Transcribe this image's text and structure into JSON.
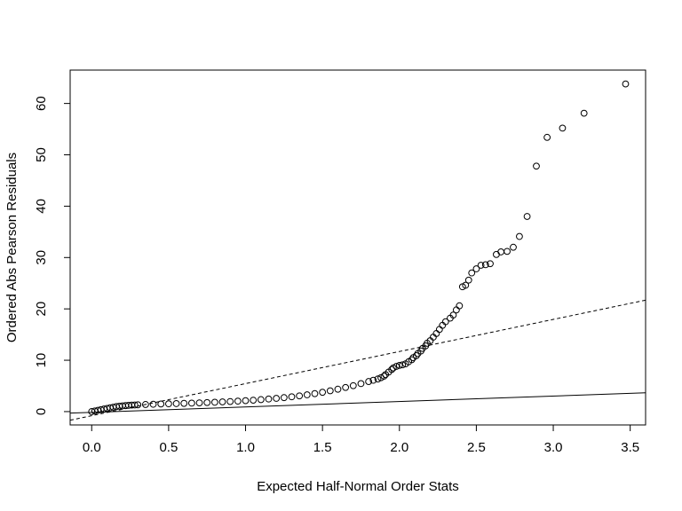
{
  "chart_data": {
    "type": "scatter",
    "title": "",
    "xlabel": "Expected Half-Normal Order Stats",
    "ylabel": "Ordered Abs Pearson Residuals",
    "xlim": [
      -0.14,
      3.6
    ],
    "ylim": [
      -2.6,
      66.5
    ],
    "xticks": [
      "0.0",
      "0.5",
      "1.0",
      "1.5",
      "2.0",
      "2.5",
      "3.0",
      "3.5"
    ],
    "xtick_values": [
      0,
      0.5,
      1.0,
      1.5,
      2.0,
      2.5,
      3.0,
      3.5
    ],
    "yticks": [
      "0",
      "10",
      "20",
      "30",
      "40",
      "50",
      "60"
    ],
    "ytick_values": [
      0,
      10,
      20,
      30,
      40,
      50,
      60
    ],
    "grid": false,
    "legend": "none",
    "marker": "open-circle",
    "lines": [
      {
        "style": "solid",
        "intercept": -0.15,
        "slope": 1.06
      },
      {
        "style": "dashed",
        "intercept": -0.8,
        "slope": 6.25
      }
    ],
    "points": [
      [
        0.0,
        0.0
      ],
      [
        0.02,
        0.12
      ],
      [
        0.04,
        0.25
      ],
      [
        0.06,
        0.38
      ],
      [
        0.08,
        0.5
      ],
      [
        0.1,
        0.62
      ],
      [
        0.12,
        0.74
      ],
      [
        0.14,
        0.86
      ],
      [
        0.16,
        0.97
      ],
      [
        0.18,
        1.05
      ],
      [
        0.2,
        1.12
      ],
      [
        0.22,
        1.17
      ],
      [
        0.24,
        1.22
      ],
      [
        0.26,
        1.26
      ],
      [
        0.28,
        1.29
      ],
      [
        0.3,
        1.32
      ],
      [
        0.35,
        1.38
      ],
      [
        0.4,
        1.43
      ],
      [
        0.45,
        1.48
      ],
      [
        0.5,
        1.52
      ],
      [
        0.55,
        1.56
      ],
      [
        0.6,
        1.6
      ],
      [
        0.65,
        1.65
      ],
      [
        0.7,
        1.7
      ],
      [
        0.75,
        1.76
      ],
      [
        0.8,
        1.82
      ],
      [
        0.85,
        1.89
      ],
      [
        0.9,
        1.96
      ],
      [
        0.95,
        2.04
      ],
      [
        1.0,
        2.13
      ],
      [
        1.05,
        2.22
      ],
      [
        1.1,
        2.33
      ],
      [
        1.15,
        2.45
      ],
      [
        1.2,
        2.58
      ],
      [
        1.25,
        2.72
      ],
      [
        1.3,
        2.88
      ],
      [
        1.35,
        3.06
      ],
      [
        1.4,
        3.27
      ],
      [
        1.45,
        3.5
      ],
      [
        1.5,
        3.76
      ],
      [
        1.55,
        4.05
      ],
      [
        1.6,
        4.36
      ],
      [
        1.65,
        4.7
      ],
      [
        1.7,
        5.05
      ],
      [
        1.75,
        5.45
      ],
      [
        1.8,
        5.85
      ],
      [
        1.83,
        6.1
      ],
      [
        1.86,
        6.35
      ],
      [
        1.88,
        6.6
      ],
      [
        1.9,
        6.9
      ],
      [
        1.91,
        7.2
      ],
      [
        1.93,
        7.7
      ],
      [
        1.95,
        8.2
      ],
      [
        1.96,
        8.5
      ],
      [
        1.98,
        8.8
      ],
      [
        2.0,
        9.0
      ],
      [
        2.02,
        9.1
      ],
      [
        2.04,
        9.3
      ],
      [
        2.06,
        9.7
      ],
      [
        2.08,
        10.1
      ],
      [
        2.09,
        10.5
      ],
      [
        2.11,
        10.9
      ],
      [
        2.12,
        11.3
      ],
      [
        2.14,
        11.8
      ],
      [
        2.15,
        12.3
      ],
      [
        2.17,
        12.8
      ],
      [
        2.18,
        13.3
      ],
      [
        2.2,
        13.8
      ],
      [
        2.22,
        14.5
      ],
      [
        2.24,
        15.2
      ],
      [
        2.26,
        16.0
      ],
      [
        2.28,
        16.8
      ],
      [
        2.3,
        17.5
      ],
      [
        2.33,
        18.2
      ],
      [
        2.35,
        18.8
      ],
      [
        2.37,
        19.8
      ],
      [
        2.39,
        20.6
      ],
      [
        2.41,
        24.3
      ],
      [
        2.43,
        24.6
      ],
      [
        2.45,
        25.6
      ],
      [
        2.47,
        27.0
      ],
      [
        2.5,
        27.8
      ],
      [
        2.53,
        28.5
      ],
      [
        2.56,
        28.6
      ],
      [
        2.59,
        28.8
      ],
      [
        2.63,
        30.6
      ],
      [
        2.66,
        31.1
      ],
      [
        2.7,
        31.2
      ],
      [
        2.74,
        32.0
      ],
      [
        2.78,
        34.1
      ],
      [
        2.83,
        38.0
      ],
      [
        2.89,
        47.8
      ],
      [
        2.96,
        53.4
      ],
      [
        3.06,
        55.2
      ],
      [
        3.2,
        58.1
      ],
      [
        3.47,
        63.8
      ]
    ]
  }
}
